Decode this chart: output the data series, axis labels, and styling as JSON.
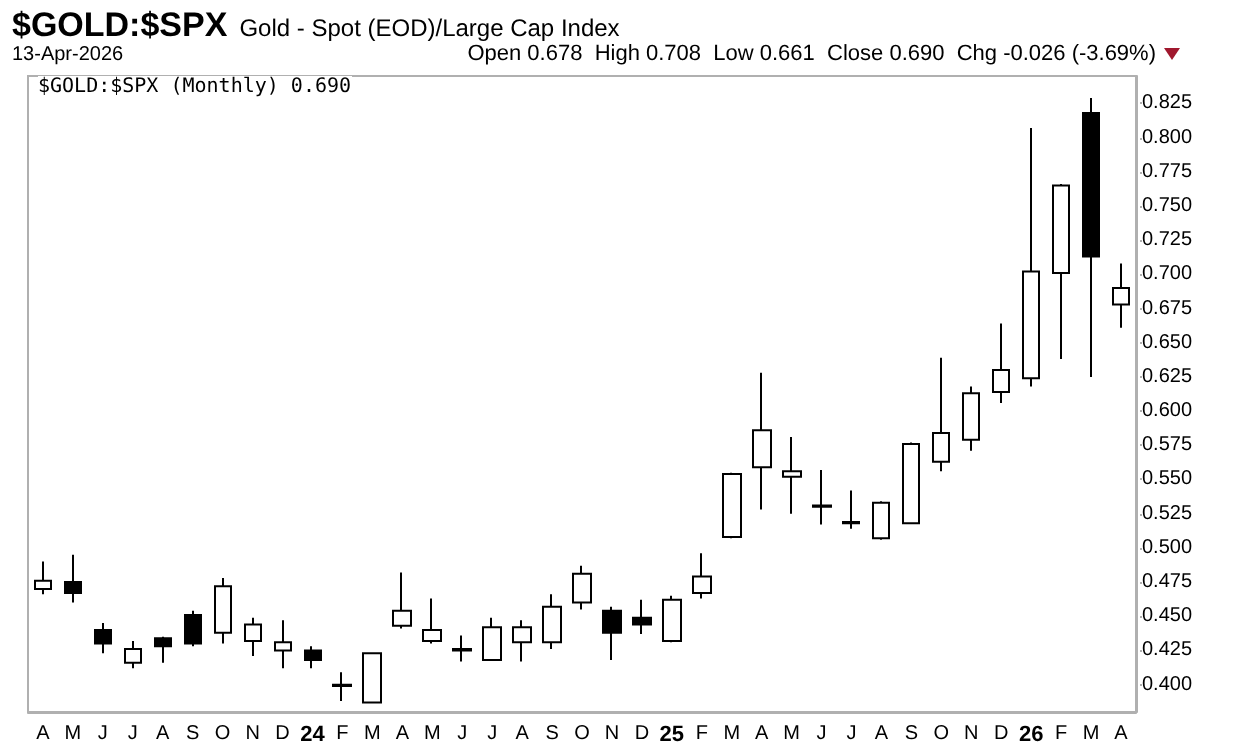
{
  "chart_data": {
    "type": "candlestick",
    "title": "$GOLD:$SPX",
    "subtitle": "Gold - Spot (EOD)/Large Cap Index",
    "annotations": [
      "13-Apr-2026",
      "Open 0.678  High 0.708  Low 0.661  Close 0.690  Chg -0.026 (-3.69%)",
      "$GOLD:$SPX (Monthly) 0.690"
    ],
    "categories": [
      "A",
      "M",
      "J",
      "J",
      "A",
      "S",
      "O",
      "N",
      "D",
      "24",
      "F",
      "M",
      "A",
      "M",
      "J",
      "J",
      "A",
      "S",
      "O",
      "N",
      "D",
      "25",
      "F",
      "M",
      "A",
      "M",
      "J",
      "J",
      "A",
      "S",
      "O",
      "N",
      "D",
      "26",
      "F",
      "M",
      "A"
    ],
    "color": "#000000",
    "ohlc": [
      [
        0.47,
        0.49,
        0.466,
        0.476
      ],
      [
        0.475,
        0.495,
        0.46,
        0.467
      ],
      [
        0.44,
        0.445,
        0.423,
        0.43
      ],
      [
        0.416,
        0.432,
        0.412,
        0.426
      ],
      [
        0.434,
        0.435,
        0.416,
        0.428
      ],
      [
        0.451,
        0.454,
        0.428,
        0.43
      ],
      [
        0.438,
        0.478,
        0.43,
        0.472
      ],
      [
        0.432,
        0.449,
        0.421,
        0.444
      ],
      [
        0.425,
        0.447,
        0.412,
        0.431
      ],
      [
        0.425,
        0.428,
        0.412,
        0.418
      ],
      [
        0.399,
        0.409,
        0.388,
        0.4
      ],
      [
        0.387,
        0.423,
        0.387,
        0.423
      ],
      [
        0.443,
        0.482,
        0.441,
        0.454
      ],
      [
        0.432,
        0.463,
        0.43,
        0.44
      ],
      [
        0.425,
        0.436,
        0.417,
        0.426
      ],
      [
        0.418,
        0.449,
        0.418,
        0.442
      ],
      [
        0.431,
        0.447,
        0.417,
        0.442
      ],
      [
        0.431,
        0.466,
        0.426,
        0.457
      ],
      [
        0.46,
        0.487,
        0.455,
        0.481
      ],
      [
        0.454,
        0.457,
        0.418,
        0.438
      ],
      [
        0.449,
        0.462,
        0.437,
        0.444
      ],
      [
        0.432,
        0.465,
        0.431,
        0.462
      ],
      [
        0.467,
        0.496,
        0.463,
        0.479
      ],
      [
        0.508,
        0.555,
        0.507,
        0.554
      ],
      [
        0.559,
        0.628,
        0.528,
        0.586
      ],
      [
        0.552,
        0.581,
        0.525,
        0.556
      ],
      [
        0.531,
        0.557,
        0.517,
        0.53
      ],
      [
        0.519,
        0.542,
        0.514,
        0.518
      ],
      [
        0.507,
        0.534,
        0.506,
        0.533
      ],
      [
        0.518,
        0.577,
        0.518,
        0.576
      ],
      [
        0.563,
        0.639,
        0.556,
        0.584
      ],
      [
        0.579,
        0.618,
        0.571,
        0.613
      ],
      [
        0.614,
        0.664,
        0.606,
        0.63
      ],
      [
        0.624,
        0.807,
        0.618,
        0.702
      ],
      [
        0.701,
        0.766,
        0.638,
        0.765
      ],
      [
        0.818,
        0.829,
        0.625,
        0.713
      ],
      [
        0.678,
        0.708,
        0.661,
        0.69
      ]
    ],
    "ylim": [
      0.38,
      0.845
    ],
    "yticks": [
      {
        "value": 0.4,
        "label": "0.400"
      },
      0.425,
      {
        "value": 0.45,
        "label": "0.450"
      },
      0.475,
      {
        "value": 0.5,
        "label": "0.500"
      },
      0.525,
      {
        "value": 0.55,
        "label": "0.550"
      },
      0.575,
      {
        "value": 0.6,
        "label": "0.600"
      },
      0.625,
      {
        "value": 0.65,
        "label": "0.650"
      },
      0.675,
      {
        "value": 0.7,
        "label": "0.700"
      },
      0.725,
      {
        "value": 0.75,
        "label": "0.750"
      },
      0.775,
      {
        "value": 0.8,
        "label": "0.800"
      },
      0.825
    ],
    "grid": false
  }
}
